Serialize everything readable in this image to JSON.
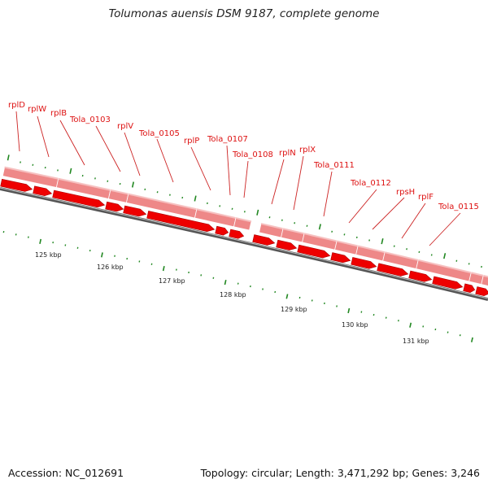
{
  "header": {
    "title": "Tolumonas auensis DSM 9187, complete genome"
  },
  "footer": {
    "accession": "Accession: NC_012691",
    "summary": "Topology: circular; Length: 3,471,292 bp; Genes: 3,246"
  },
  "gene_labels": [
    "rplD",
    "rplW",
    "rplB",
    "Tola_0103",
    "rplV",
    "Tola_0105",
    "rplP",
    "Tola_0107",
    "Tola_0108",
    "rplN",
    "rplX",
    "Tola_0111",
    "Tola_0112",
    "rpsH",
    "rplF",
    "Tola_0115"
  ],
  "kbp_labels": [
    "125 kbp",
    "126 kbp",
    "127 kbp",
    "128 kbp",
    "129 kbp",
    "130 kbp",
    "131 kbp"
  ],
  "colors": {
    "label": "#dd1111",
    "cds": "#ee0000",
    "gene_band": "#ee8888",
    "backbone": "#777777",
    "tick": "#228822"
  }
}
